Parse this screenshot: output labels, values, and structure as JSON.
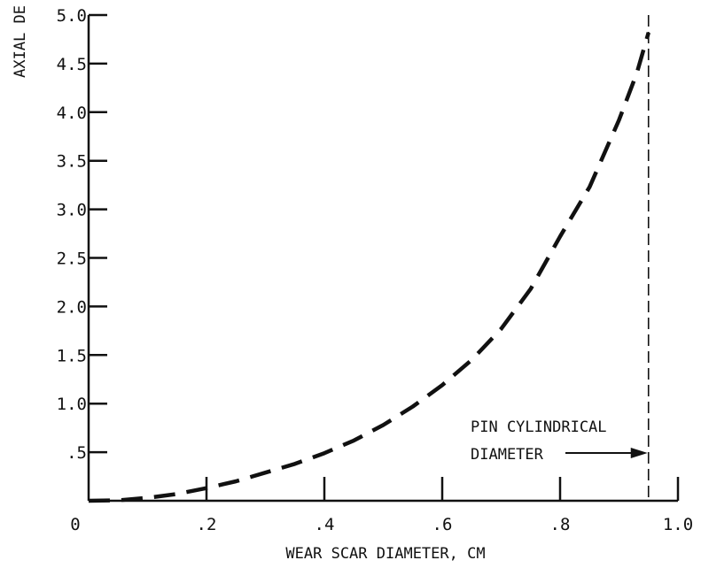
{
  "chart_data": {
    "type": "line",
    "xlabel": "WEAR SCAR DIAMETER, CM",
    "ylabel": "AXIAL DE",
    "xlim": [
      0,
      1.0
    ],
    "ylim": [
      0,
      5.0
    ],
    "x_ticks": [
      0,
      0.2,
      0.4,
      0.6,
      0.8,
      1.0
    ],
    "x_tick_labels": [
      "0",
      ".2",
      ".4",
      ".6",
      ".8",
      "1.0"
    ],
    "y_ticks": [
      0.5,
      1.0,
      1.5,
      2.0,
      2.5,
      3.0,
      3.5,
      4.0,
      4.5,
      5.0
    ],
    "y_tick_labels": [
      ".5",
      "1.0",
      "1.5",
      "2.0",
      "2.5",
      "3.0",
      "3.5",
      "4.0",
      "4.5",
      "5.0"
    ],
    "grid": false,
    "line_color": "#111111",
    "series": [
      {
        "style": "dashed",
        "x": [
          0,
          0.05,
          0.1,
          0.15,
          0.2,
          0.25,
          0.3,
          0.35,
          0.4,
          0.45,
          0.5,
          0.55,
          0.6,
          0.65,
          0.7,
          0.75,
          0.8,
          0.85,
          0.9,
          0.93,
          0.95
        ],
        "y": [
          0,
          0.005,
          0.03,
          0.07,
          0.13,
          0.2,
          0.29,
          0.38,
          0.49,
          0.62,
          0.78,
          0.97,
          1.19,
          1.45,
          1.77,
          2.18,
          2.72,
          3.23,
          3.92,
          4.4,
          4.82
        ]
      }
    ],
    "reference_line": {
      "x": 0.95,
      "style": "dashed"
    },
    "annotation": {
      "line1": "PIN CYLINDRICAL",
      "line2": "DIAMETER",
      "points_to_x": 0.95
    }
  }
}
